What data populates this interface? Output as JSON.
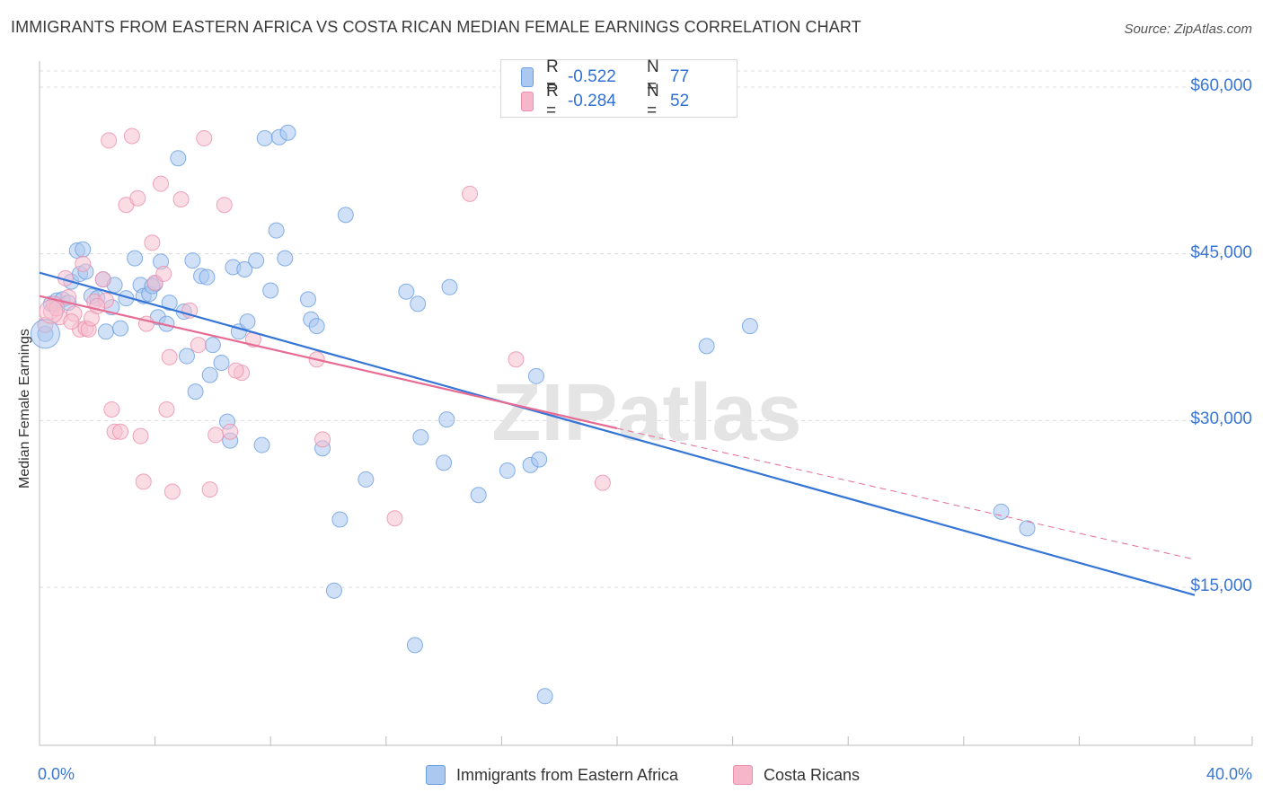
{
  "title": "IMMIGRANTS FROM EASTERN AFRICA VS COSTA RICAN MEDIAN FEMALE EARNINGS CORRELATION CHART",
  "source": "Source: ZipAtlas.com",
  "watermark": "ZIPatlas",
  "legend": {
    "rows": [
      {
        "r_label": "R =",
        "r_value": "-0.522",
        "n_label": "N =",
        "n_value": "77",
        "color": "#aac8f0"
      },
      {
        "r_label": "R =",
        "r_value": "-0.284",
        "n_label": "N =",
        "n_value": "52",
        "color": "#f7b7cb"
      }
    ]
  },
  "colors": {
    "blue_fill": "#a9c7ef",
    "blue_stroke": "#6a9de0",
    "blue_line": "#3575d6",
    "pink_fill": "#f6bfd0",
    "pink_stroke": "#eb8fac",
    "pink_line": "#e66c93",
    "axis_text": "#3a76d2",
    "grid": "#dcdcdc"
  },
  "chart_data": {
    "type": "scatter",
    "title": "IMMIGRANTS FROM EASTERN AFRICA VS COSTA RICAN MEDIAN FEMALE EARNINGS CORRELATION CHART",
    "xlabel": "",
    "ylabel": "Median Female Earnings",
    "x_unit": "%",
    "xlim": [
      0,
      42
    ],
    "ylim": [
      1000,
      62000
    ],
    "x_tick_labels": [
      "0.0%",
      "40.0%"
    ],
    "y_ticks": [
      15000,
      30000,
      45000,
      60000
    ],
    "y_tick_labels": [
      "$15,000",
      "$30,000",
      "$45,000",
      "$60,000"
    ],
    "grid": "horizontal dashed",
    "legend_position": "top-center",
    "series": [
      {
        "name": "Immigrants from Eastern Africa",
        "color": "#a9c7ef",
        "points": [
          [
            0.2,
            37800
          ],
          [
            0.4,
            40500
          ],
          [
            0.6,
            40800
          ],
          [
            0.8,
            40900
          ],
          [
            1.0,
            40600
          ],
          [
            1.1,
            42500
          ],
          [
            1.3,
            45300
          ],
          [
            1.4,
            43200
          ],
          [
            1.5,
            45400
          ],
          [
            1.6,
            43400
          ],
          [
            1.8,
            41200
          ],
          [
            2.0,
            41000
          ],
          [
            2.2,
            42700
          ],
          [
            2.3,
            38000
          ],
          [
            2.5,
            40200
          ],
          [
            2.8,
            38300
          ],
          [
            3.0,
            41000
          ],
          [
            3.3,
            44600
          ],
          [
            3.5,
            42200
          ],
          [
            3.6,
            41200
          ],
          [
            3.8,
            41400
          ],
          [
            4.0,
            42300
          ],
          [
            4.1,
            39300
          ],
          [
            4.2,
            44300
          ],
          [
            4.4,
            38700
          ],
          [
            4.5,
            40600
          ],
          [
            4.8,
            53600
          ],
          [
            5.0,
            39800
          ],
          [
            5.1,
            35800
          ],
          [
            5.3,
            44400
          ],
          [
            5.4,
            32600
          ],
          [
            5.6,
            43000
          ],
          [
            5.8,
            42900
          ],
          [
            5.9,
            34100
          ],
          [
            6.0,
            36800
          ],
          [
            6.3,
            35200
          ],
          [
            6.5,
            29900
          ],
          [
            6.6,
            28200
          ],
          [
            6.7,
            43800
          ],
          [
            6.9,
            38000
          ],
          [
            7.1,
            43600
          ],
          [
            7.2,
            38900
          ],
          [
            7.5,
            44400
          ],
          [
            7.7,
            27800
          ],
          [
            7.8,
            55400
          ],
          [
            8.0,
            41700
          ],
          [
            8.2,
            47100
          ],
          [
            8.3,
            55500
          ],
          [
            8.5,
            44600
          ],
          [
            8.6,
            55900
          ],
          [
            9.3,
            40900
          ],
          [
            9.4,
            39100
          ],
          [
            9.6,
            38500
          ],
          [
            9.8,
            27500
          ],
          [
            10.2,
            14700
          ],
          [
            10.4,
            21100
          ],
          [
            10.6,
            48500
          ],
          [
            11.3,
            24700
          ],
          [
            12.7,
            41600
          ],
          [
            13.0,
            9800
          ],
          [
            13.1,
            40500
          ],
          [
            13.2,
            28500
          ],
          [
            14.0,
            26200
          ],
          [
            14.1,
            30100
          ],
          [
            14.2,
            42000
          ],
          [
            15.2,
            23300
          ],
          [
            16.2,
            25500
          ],
          [
            17.0,
            26000
          ],
          [
            17.2,
            34000
          ],
          [
            17.3,
            26500
          ],
          [
            17.5,
            5200
          ],
          [
            23.1,
            36700
          ],
          [
            24.6,
            38500
          ],
          [
            33.3,
            21800
          ],
          [
            34.2,
            20300
          ],
          [
            2.6,
            42200
          ],
          [
            3.9,
            42100
          ]
        ]
      },
      {
        "name": "Costa Ricans",
        "color": "#f6bfd0",
        "points": [
          [
            0.2,
            38600
          ],
          [
            0.4,
            39800
          ],
          [
            0.5,
            40500
          ],
          [
            0.7,
            39300
          ],
          [
            0.9,
            42800
          ],
          [
            1.0,
            41100
          ],
          [
            1.2,
            39600
          ],
          [
            1.4,
            38200
          ],
          [
            1.5,
            44100
          ],
          [
            1.6,
            38300
          ],
          [
            1.7,
            38200
          ],
          [
            1.8,
            39200
          ],
          [
            1.9,
            40700
          ],
          [
            2.2,
            42700
          ],
          [
            2.3,
            40800
          ],
          [
            2.4,
            55200
          ],
          [
            2.5,
            31000
          ],
          [
            2.6,
            29000
          ],
          [
            2.8,
            29000
          ],
          [
            3.0,
            49400
          ],
          [
            3.2,
            55600
          ],
          [
            3.4,
            50000
          ],
          [
            3.5,
            28600
          ],
          [
            3.6,
            24500
          ],
          [
            3.9,
            46000
          ],
          [
            4.0,
            42400
          ],
          [
            4.2,
            51300
          ],
          [
            4.3,
            43200
          ],
          [
            4.4,
            31000
          ],
          [
            4.5,
            35700
          ],
          [
            4.6,
            23600
          ],
          [
            4.9,
            49900
          ],
          [
            5.2,
            39900
          ],
          [
            5.5,
            36800
          ],
          [
            5.7,
            55400
          ],
          [
            5.9,
            23800
          ],
          [
            6.1,
            28700
          ],
          [
            6.4,
            49400
          ],
          [
            6.6,
            29000
          ],
          [
            7.0,
            34300
          ],
          [
            7.4,
            37300
          ],
          [
            9.6,
            35500
          ],
          [
            9.8,
            28300
          ],
          [
            12.3,
            21200
          ],
          [
            14.9,
            50400
          ],
          [
            16.5,
            35500
          ],
          [
            19.5,
            24400
          ],
          [
            1.1,
            38900
          ],
          [
            0.6,
            40100
          ],
          [
            3.7,
            38700
          ],
          [
            6.8,
            34500
          ],
          [
            2.0,
            40300
          ]
        ]
      }
    ],
    "trendlines": [
      {
        "series": "Immigrants from Eastern Africa",
        "from": [
          0,
          43300
        ],
        "to": [
          40.0,
          14300
        ],
        "style": "solid"
      },
      {
        "series": "Costa Ricans",
        "from": [
          0,
          41200
        ],
        "to": [
          20.0,
          29300
        ],
        "style": "solid"
      },
      {
        "series": "Costa Ricans",
        "from": [
          20.0,
          29300
        ],
        "to": [
          40.0,
          17500
        ],
        "style": "dashed"
      }
    ]
  },
  "bottom_legend": {
    "items": [
      {
        "label": "Immigrants from Eastern Africa",
        "color": "#aac8f0"
      },
      {
        "label": "Costa Ricans",
        "color": "#f7b7cb"
      }
    ]
  }
}
